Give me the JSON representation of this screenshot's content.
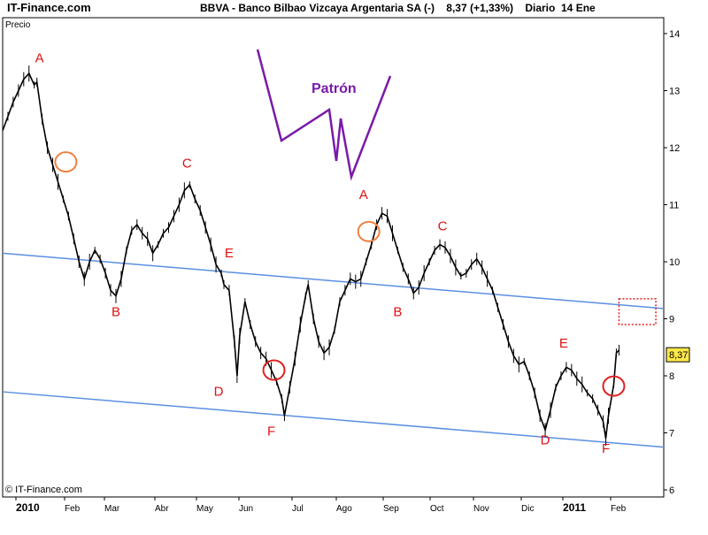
{
  "header": {
    "site": "IT-Finance.com",
    "title": "BBVA - Banco Bilbao Vizcaya Argentaria SA (-)    8,37 (+1,33%)    Diario  14 Ene"
  },
  "chart_data": {
    "type": "line",
    "ylabel": "Precio",
    "copyright": "© IT-Finance.com",
    "last_value_label": "8,37",
    "ylim": [
      6,
      14.3
    ],
    "y_ticks": [
      "14",
      "13",
      "12",
      "11",
      "10",
      "9",
      "8",
      "7",
      "6"
    ],
    "x_ticks": [
      "2010",
      "Feb",
      "Mar",
      "Abr",
      "May",
      "Jun",
      "Jul",
      "Ago",
      "Sep",
      "Oct",
      "Nov",
      "Dic",
      "2011",
      "Feb"
    ],
    "grid": false,
    "series": [
      {
        "values": [
          [
            0,
            12.3
          ],
          [
            2,
            12.55
          ],
          [
            4,
            12.8
          ],
          [
            6,
            13.0
          ],
          [
            8,
            13.2
          ],
          [
            10,
            13.3
          ],
          [
            12,
            13.1
          ],
          [
            13,
            13.15
          ],
          [
            15,
            12.5
          ],
          [
            17,
            12.0
          ],
          [
            19,
            11.7
          ],
          [
            21,
            11.4
          ],
          [
            23,
            11.1
          ],
          [
            25,
            10.8
          ],
          [
            27,
            10.4
          ],
          [
            29,
            10.0
          ],
          [
            31,
            9.7
          ],
          [
            33,
            10.0
          ],
          [
            35,
            10.2
          ],
          [
            37,
            10.05
          ],
          [
            39,
            9.8
          ],
          [
            41,
            9.5
          ],
          [
            43,
            9.4
          ],
          [
            45,
            9.7
          ],
          [
            47,
            10.2
          ],
          [
            49,
            10.55
          ],
          [
            51,
            10.65
          ],
          [
            53,
            10.5
          ],
          [
            55,
            10.4
          ],
          [
            57,
            10.15
          ],
          [
            59,
            10.3
          ],
          [
            61,
            10.5
          ],
          [
            63,
            10.6
          ],
          [
            65,
            10.8
          ],
          [
            67,
            11.0
          ],
          [
            69,
            11.25
          ],
          [
            71,
            11.35
          ],
          [
            73,
            11.1
          ],
          [
            75,
            10.9
          ],
          [
            77,
            10.6
          ],
          [
            79,
            10.3
          ],
          [
            81,
            9.95
          ],
          [
            83,
            9.8
          ],
          [
            84,
            9.6
          ],
          [
            86,
            9.5
          ],
          [
            88,
            8.6
          ],
          [
            89,
            8.0
          ],
          [
            90,
            8.7
          ],
          [
            92,
            9.3
          ],
          [
            94,
            8.9
          ],
          [
            96,
            8.6
          ],
          [
            98,
            8.4
          ],
          [
            100,
            8.3
          ],
          [
            102,
            8.1
          ],
          [
            104,
            7.9
          ],
          [
            106,
            7.6
          ],
          [
            107,
            7.3
          ],
          [
            109,
            7.8
          ],
          [
            111,
            8.3
          ],
          [
            113,
            8.9
          ],
          [
            115,
            9.4
          ],
          [
            116,
            9.6
          ],
          [
            118,
            9.0
          ],
          [
            120,
            8.6
          ],
          [
            122,
            8.4
          ],
          [
            124,
            8.5
          ],
          [
            126,
            8.8
          ],
          [
            128,
            9.3
          ],
          [
            130,
            9.5
          ],
          [
            132,
            9.7
          ],
          [
            134,
            9.65
          ],
          [
            136,
            9.7
          ],
          [
            138,
            10.0
          ],
          [
            140,
            10.3
          ],
          [
            142,
            10.65
          ],
          [
            144,
            10.85
          ],
          [
            146,
            10.8
          ],
          [
            148,
            10.5
          ],
          [
            150,
            10.2
          ],
          [
            152,
            9.9
          ],
          [
            154,
            9.7
          ],
          [
            156,
            9.45
          ],
          [
            158,
            9.55
          ],
          [
            160,
            9.8
          ],
          [
            162,
            10.0
          ],
          [
            164,
            10.2
          ],
          [
            166,
            10.3
          ],
          [
            168,
            10.25
          ],
          [
            170,
            10.1
          ],
          [
            172,
            9.9
          ],
          [
            174,
            9.75
          ],
          [
            176,
            9.8
          ],
          [
            178,
            9.95
          ],
          [
            180,
            10.05
          ],
          [
            182,
            9.9
          ],
          [
            184,
            9.7
          ],
          [
            186,
            9.5
          ],
          [
            188,
            9.2
          ],
          [
            190,
            8.9
          ],
          [
            192,
            8.6
          ],
          [
            194,
            8.35
          ],
          [
            196,
            8.2
          ],
          [
            198,
            8.25
          ],
          [
            200,
            8.0
          ],
          [
            202,
            7.7
          ],
          [
            204,
            7.3
          ],
          [
            206,
            7.05
          ],
          [
            208,
            7.4
          ],
          [
            210,
            7.8
          ],
          [
            212,
            8.0
          ],
          [
            214,
            8.15
          ],
          [
            216,
            8.1
          ],
          [
            218,
            7.95
          ],
          [
            220,
            7.85
          ],
          [
            222,
            7.7
          ],
          [
            224,
            7.6
          ],
          [
            226,
            7.4
          ],
          [
            228,
            7.2
          ],
          [
            229,
            6.9
          ],
          [
            230,
            7.3
          ],
          [
            232,
            7.85
          ],
          [
            233,
            8.4
          ],
          [
            234,
            8.45
          ]
        ]
      }
    ],
    "trendlines": [
      {
        "from": [
          0,
          10.15
        ],
        "to": [
          251,
          9.18
        ]
      },
      {
        "from": [
          0,
          7.72
        ],
        "to": [
          251,
          6.75
        ]
      }
    ],
    "pattern_label": "Patrón",
    "wave_labels": [
      {
        "text": "A",
        "x": 14,
        "y": 13.5
      },
      {
        "text": "B",
        "x": 43,
        "y": 9.05
      },
      {
        "text": "C",
        "x": 70,
        "y": 11.65
      },
      {
        "text": "D",
        "x": 82,
        "y": 7.65
      },
      {
        "text": "E",
        "x": 86,
        "y": 10.08
      },
      {
        "text": "F",
        "x": 102,
        "y": 6.95
      },
      {
        "text": "A",
        "x": 137,
        "y": 11.1
      },
      {
        "text": "B",
        "x": 150,
        "y": 9.05
      },
      {
        "text": "C",
        "x": 167,
        "y": 10.55
      },
      {
        "text": "D",
        "x": 206,
        "y": 6.8
      },
      {
        "text": "E",
        "x": 213,
        "y": 8.5
      },
      {
        "text": "F",
        "x": 229,
        "y": 6.65
      }
    ],
    "circles": [
      {
        "x": 24,
        "y": 11.75,
        "color": "#f08040"
      },
      {
        "x": 103,
        "y": 8.1,
        "color": "#e02020"
      },
      {
        "x": 139,
        "y": 10.53,
        "color": "#f08040"
      },
      {
        "x": 232,
        "y": 7.82,
        "color": "#e02020"
      }
    ],
    "target_box": {
      "x1": 234,
      "x2": 248,
      "y1": 8.9,
      "y2": 9.35
    },
    "accent_colors": {
      "labels": "#dd1111",
      "pattern": "#7a1aa8",
      "trendline": "#5b8fe0",
      "price": "#000000",
      "last_value_bg": "#ffe84a"
    }
  }
}
